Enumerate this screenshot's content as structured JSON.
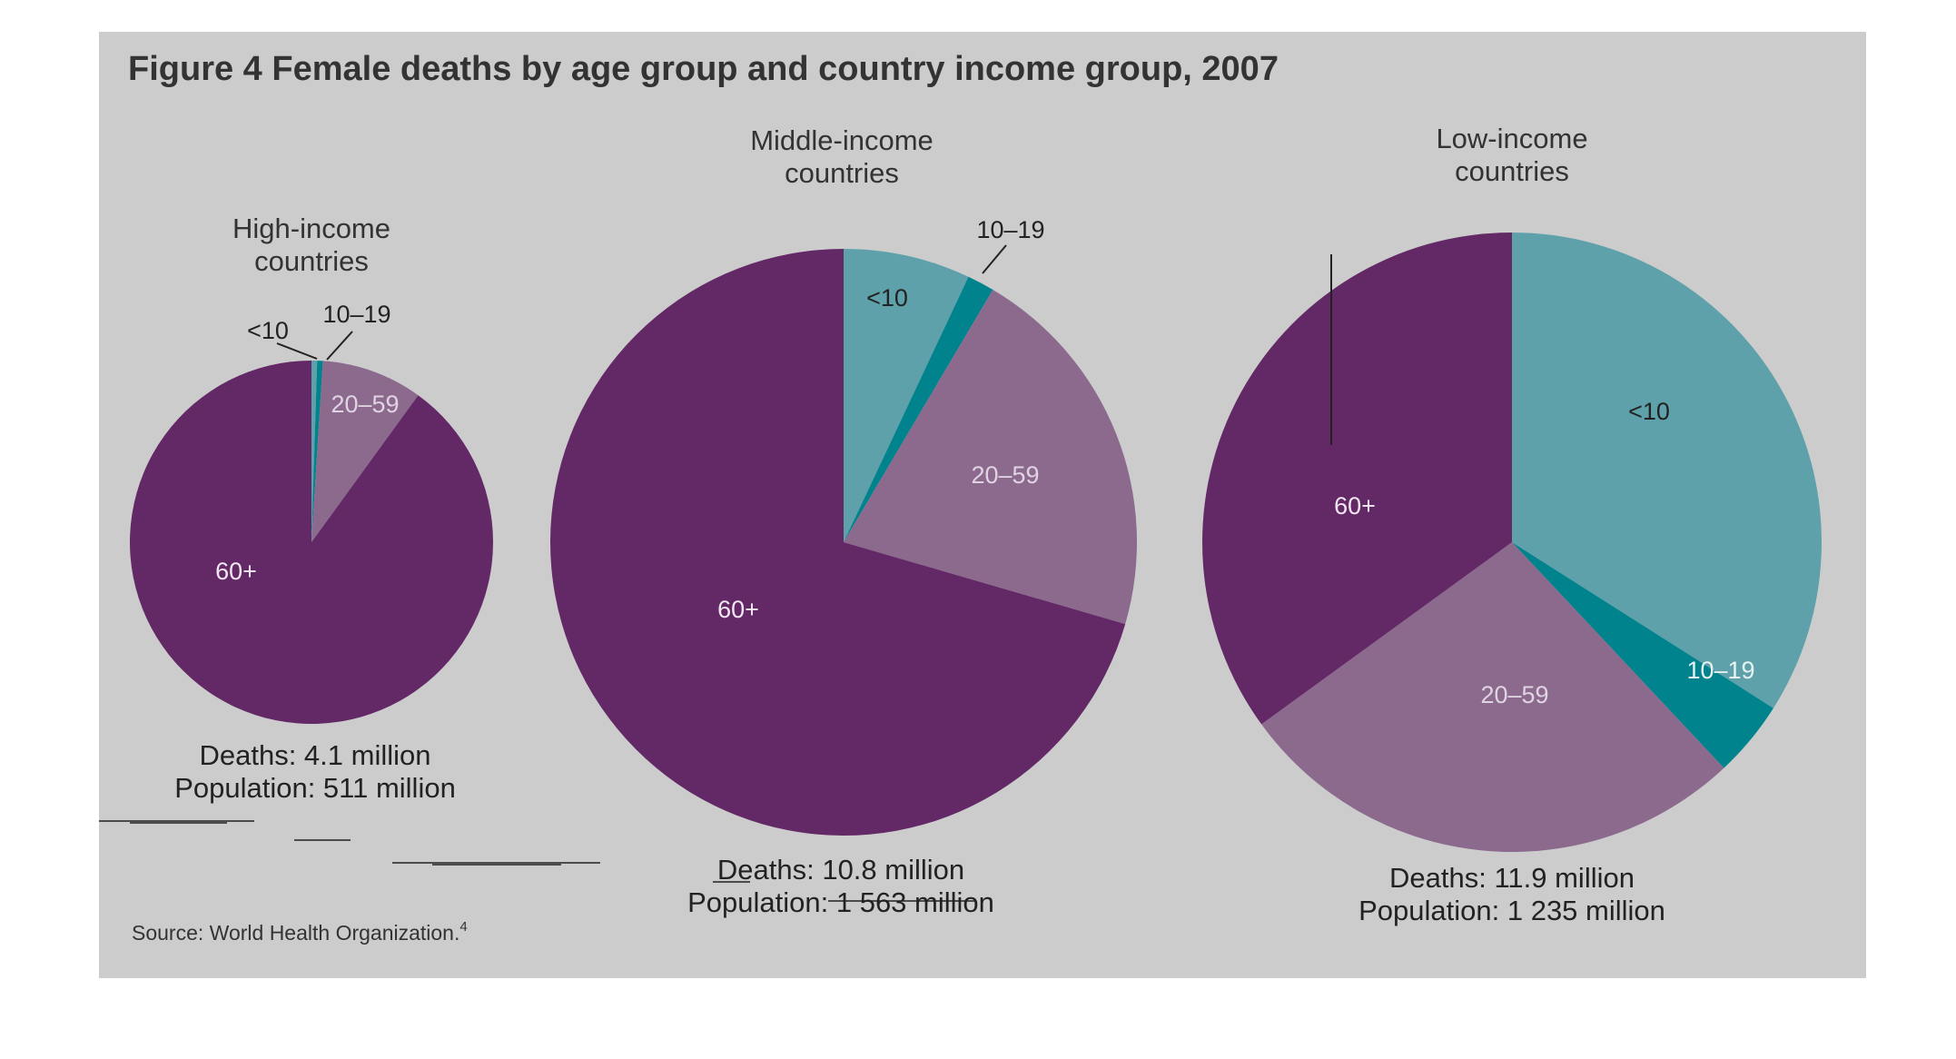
{
  "chart_title": "Figure 4 Female deaths by age group and country income group, 2007",
  "source": "Source: World Health Organization.",
  "source_sup": "4",
  "colors": {
    "background": "#cccccc",
    "under10": "#5fa1aa",
    "age10_19": "#00838c",
    "age20_59": "#8b6a8e",
    "age60plus": "#632866"
  },
  "chart_data": [
    {
      "type": "pie",
      "title": "High-income countries",
      "title_lines": [
        "High-income",
        "countries"
      ],
      "categories": [
        "<10",
        "10–19",
        "20–59",
        "60+"
      ],
      "values": [
        0.5,
        0.5,
        9,
        90
      ],
      "deaths": "Deaths: 4.1 million",
      "population": "Population: 511 million"
    },
    {
      "type": "pie",
      "title": "Middle-income countries",
      "title_lines": [
        "Middle-income",
        "countries"
      ],
      "categories": [
        "<10",
        "10–19",
        "20–59",
        "60+"
      ],
      "values": [
        7,
        1.5,
        21,
        70.5
      ],
      "deaths": "Deaths: 10.8 million",
      "population": "Population: 1 563 million"
    },
    {
      "type": "pie",
      "title": "Low-income countries",
      "title_lines": [
        "Low-income",
        "countries"
      ],
      "categories": [
        "<10",
        "10–19",
        "20–59",
        "60+"
      ],
      "values": [
        34,
        4,
        27,
        35
      ],
      "deaths": "Deaths: 11.9 million",
      "population": "Population: 1 235 million"
    }
  ]
}
